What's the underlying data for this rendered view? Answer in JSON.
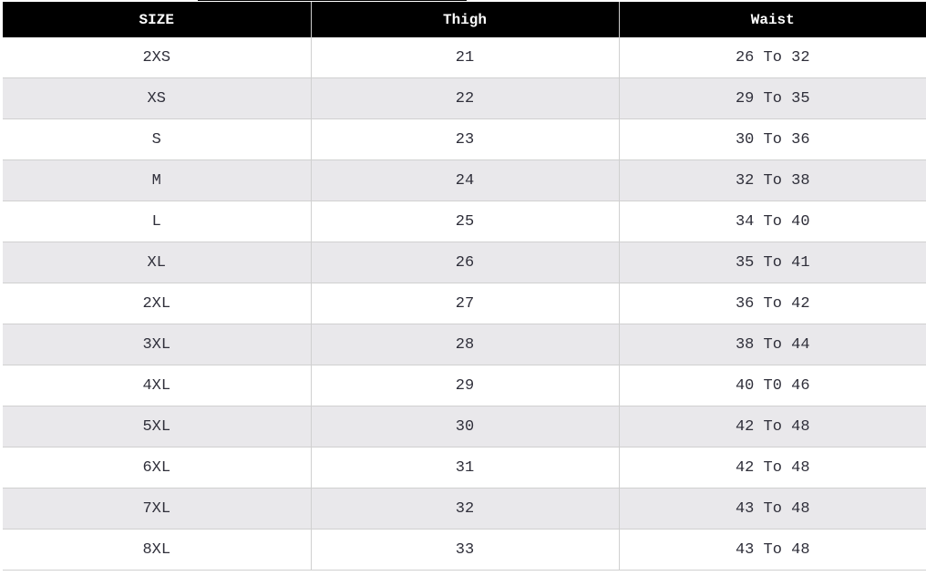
{
  "table": {
    "headers": [
      "SIZE",
      "Thigh",
      "Waist"
    ],
    "rows": [
      [
        "2XS",
        "21",
        "26 To 32"
      ],
      [
        "XS",
        "22",
        "29 To 35"
      ],
      [
        "S",
        "23",
        "30 To 36"
      ],
      [
        "M",
        "24",
        "32 To 38"
      ],
      [
        "L",
        "25",
        "34 To 40"
      ],
      [
        "XL",
        "26",
        "35 To 41"
      ],
      [
        "2XL",
        "27",
        "36 To 42"
      ],
      [
        "3XL",
        "28",
        "38 To 44"
      ],
      [
        "4XL",
        "29",
        "40 T0 46"
      ],
      [
        "5XL",
        "30",
        "42 To 48"
      ],
      [
        "6XL",
        "31",
        "42 To 48"
      ],
      [
        "7XL",
        "32",
        "43 To 48"
      ],
      [
        "8XL",
        "33",
        "43 To 48"
      ]
    ]
  }
}
